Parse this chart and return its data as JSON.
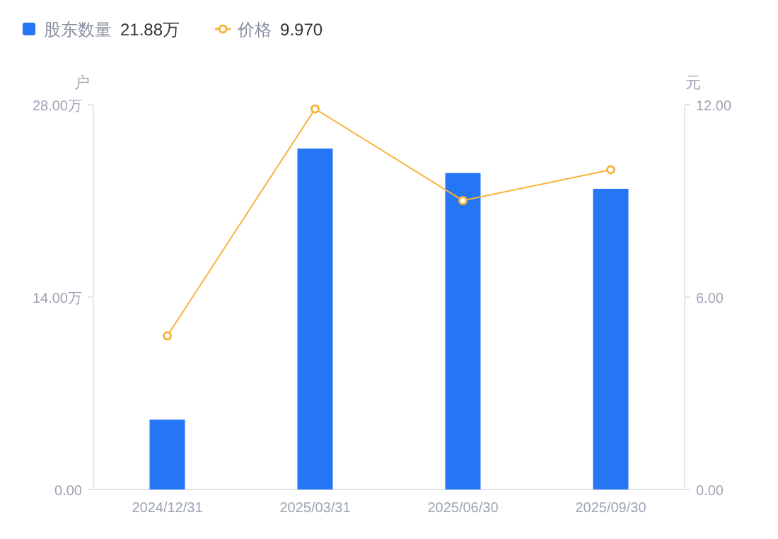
{
  "chart_data": {
    "type": "bar",
    "categories": [
      "2024/12/31",
      "2025/03/31",
      "2025/06/30",
      "2025/09/30"
    ],
    "series": [
      {
        "name": "股东数量",
        "color": "#2476f4",
        "values": [
          5.08,
          24.81,
          23.03,
          21.88
        ]
      },
      {
        "name": "价格",
        "type": "line",
        "axis": "y2",
        "color": "#f8b33a",
        "values": [
          4.79,
          11.87,
          9.01,
          9.97
        ]
      }
    ],
    "ylabel": "户",
    "y2label": "元",
    "ylim": [
      0,
      28
    ],
    "yticks": [
      {
        "value": 0,
        "label": "0.00"
      },
      {
        "value": 14,
        "label": "14.00万"
      },
      {
        "value": 28,
        "label": "28.00万"
      }
    ],
    "y2lim": [
      0,
      12
    ],
    "y2ticks": [
      {
        "value": 0,
        "label": "0.00"
      },
      {
        "value": 6,
        "label": "6.00"
      },
      {
        "value": 12,
        "label": "12.00"
      }
    ],
    "annotations": [
      "21.88万",
      "9.970"
    ],
    "legend": "top left",
    "marker": "circle"
  }
}
